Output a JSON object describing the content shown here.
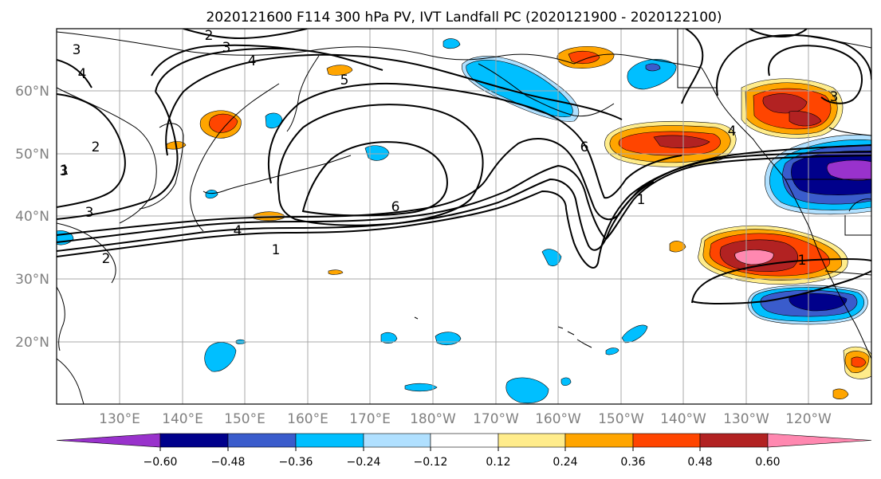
{
  "figure": {
    "title": "2020121600 F114 300 hPa PV, IVT Landfall PC (2020121900 - 2020122100)"
  },
  "map": {
    "lat_ticks": [
      "60°N",
      "50°N",
      "40°N",
      "30°N",
      "20°N"
    ],
    "lon_ticks": [
      "130°E",
      "140°E",
      "150°E",
      "160°E",
      "170°E",
      "180°W",
      "170°W",
      "160°W",
      "150°W",
      "140°W",
      "130°W",
      "120°W"
    ],
    "contour_labels": [
      "2",
      "3",
      "4",
      "4",
      "5",
      "3",
      "6",
      "3",
      "3",
      "6",
      "4",
      "1",
      "2",
      "2",
      "1",
      "1",
      "3",
      "4",
      "1"
    ]
  },
  "colorbar": {
    "tick_labels": [
      "−0.60",
      "−0.48",
      "−0.36",
      "−0.24",
      "−0.12",
      "0.12",
      "0.24",
      "0.36",
      "0.48",
      "0.60"
    ],
    "colors": [
      "#9932cc",
      "#00008b",
      "#3a5ccc",
      "#00bfff",
      "#b0e0ff",
      "#ffffff",
      "#ffec8b",
      "#ffa500",
      "#ff4500",
      "#b22222",
      "#ff88b0"
    ]
  }
}
